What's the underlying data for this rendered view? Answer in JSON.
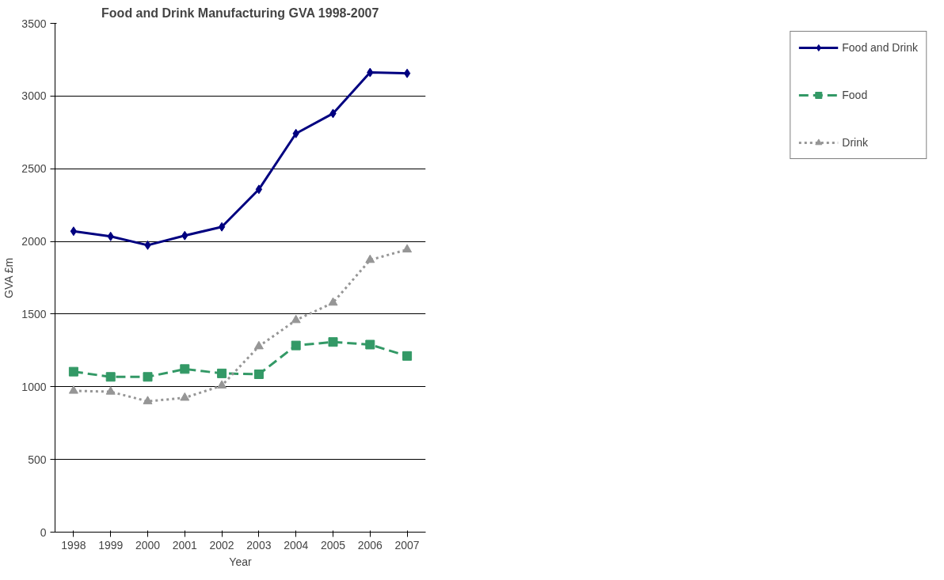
{
  "chart_data": {
    "type": "line",
    "title": "Food and Drink Manufacturing GVA 1998-2007",
    "xlabel": "Year",
    "ylabel": "GVA £m",
    "categories": [
      "1998",
      "1999",
      "2000",
      "2001",
      "2002",
      "2003",
      "2004",
      "2005",
      "2006",
      "2007"
    ],
    "series": [
      {
        "name": "Food and Drink",
        "color": "#000080",
        "marker": "diamond",
        "line_style": "solid",
        "values": [
          2070,
          2034,
          1974,
          2040,
          2100,
          2358,
          2742,
          2880,
          3162,
          3156
        ]
      },
      {
        "name": "Food",
        "color": "#339966",
        "marker": "square",
        "line_style": "dashed",
        "values": [
          1104,
          1068,
          1068,
          1122,
          1092,
          1086,
          1284,
          1308,
          1290,
          1212
        ]
      },
      {
        "name": "Drink",
        "color": "#969696",
        "marker": "triangle",
        "line_style": "dotted",
        "values": [
          972,
          966,
          900,
          924,
          1008,
          1278,
          1458,
          1578,
          1872,
          1944
        ]
      }
    ],
    "ylim": [
      0,
      3500
    ],
    "yticks": [
      0,
      500,
      1000,
      1500,
      2000,
      2500,
      3000,
      3500
    ],
    "grid": "y",
    "legend": "right"
  }
}
